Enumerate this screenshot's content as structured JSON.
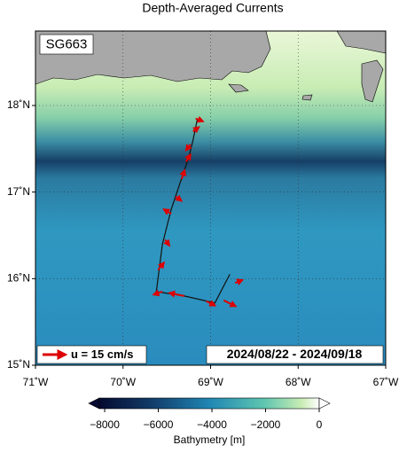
{
  "chart_data": {
    "type": "map",
    "title": "Depth-Averaged Currents",
    "glider": "SG663",
    "legend_label": "u = 15 cm/s",
    "date_range": "2024/08/22 - 2024/09/18",
    "xlim": [
      -71,
      -67
    ],
    "ylim": [
      15,
      18.86
    ],
    "xticks": [
      {
        "value": -71,
        "label": "71˚W"
      },
      {
        "value": -70,
        "label": "70˚W"
      },
      {
        "value": -69,
        "label": "69˚W"
      },
      {
        "value": -68,
        "label": "68˚W"
      },
      {
        "value": -67,
        "label": "67˚W"
      }
    ],
    "yticks": [
      {
        "value": 15,
        "label": "15˚N"
      },
      {
        "value": 16,
        "label": "16˚N"
      },
      {
        "value": 17,
        "label": "17˚N"
      },
      {
        "value": 18,
        "label": "18˚N"
      }
    ],
    "grid": true,
    "track": {
      "color": "#111111",
      "lon": [
        -68.78,
        -68.95,
        -69.3,
        -69.62,
        -69.55,
        -69.45,
        -69.35,
        -69.25,
        -69.2,
        -69.15
      ],
      "lat": [
        16.05,
        15.72,
        15.8,
        15.85,
        16.4,
        16.8,
        17.1,
        17.4,
        17.6,
        17.85
      ]
    },
    "currents": {
      "color": "#dd0000",
      "lon": [
        -68.72,
        -68.85,
        -69.05,
        -69.3,
        -69.55,
        -69.6,
        -69.52,
        -69.45,
        -69.4,
        -69.33,
        -69.28,
        -69.23,
        -69.2,
        -69.17
      ],
      "lat": [
        15.95,
        15.75,
        15.74,
        15.8,
        15.85,
        16.1,
        16.45,
        16.75,
        16.95,
        17.15,
        17.35,
        17.55,
        17.7,
        17.85
      ],
      "u": [
        5,
        8,
        6,
        -10,
        -6,
        4,
        3,
        -5,
        4,
        2,
        3,
        -3,
        4,
        5
      ],
      "v": [
        2,
        -4,
        -3,
        2,
        -2,
        5,
        -4,
        3,
        -3,
        6,
        5,
        -4,
        3,
        -2
      ]
    },
    "colorbar": {
      "label": "Bathymetry [m]",
      "clim": [
        -8200,
        0
      ],
      "ticks": [
        {
          "value": -8000,
          "label": "−8000"
        },
        {
          "value": -6000,
          "label": "−6000"
        },
        {
          "value": -4000,
          "label": "−4000"
        },
        {
          "value": -2000,
          "label": "−2000"
        },
        0
      ]
    }
  }
}
